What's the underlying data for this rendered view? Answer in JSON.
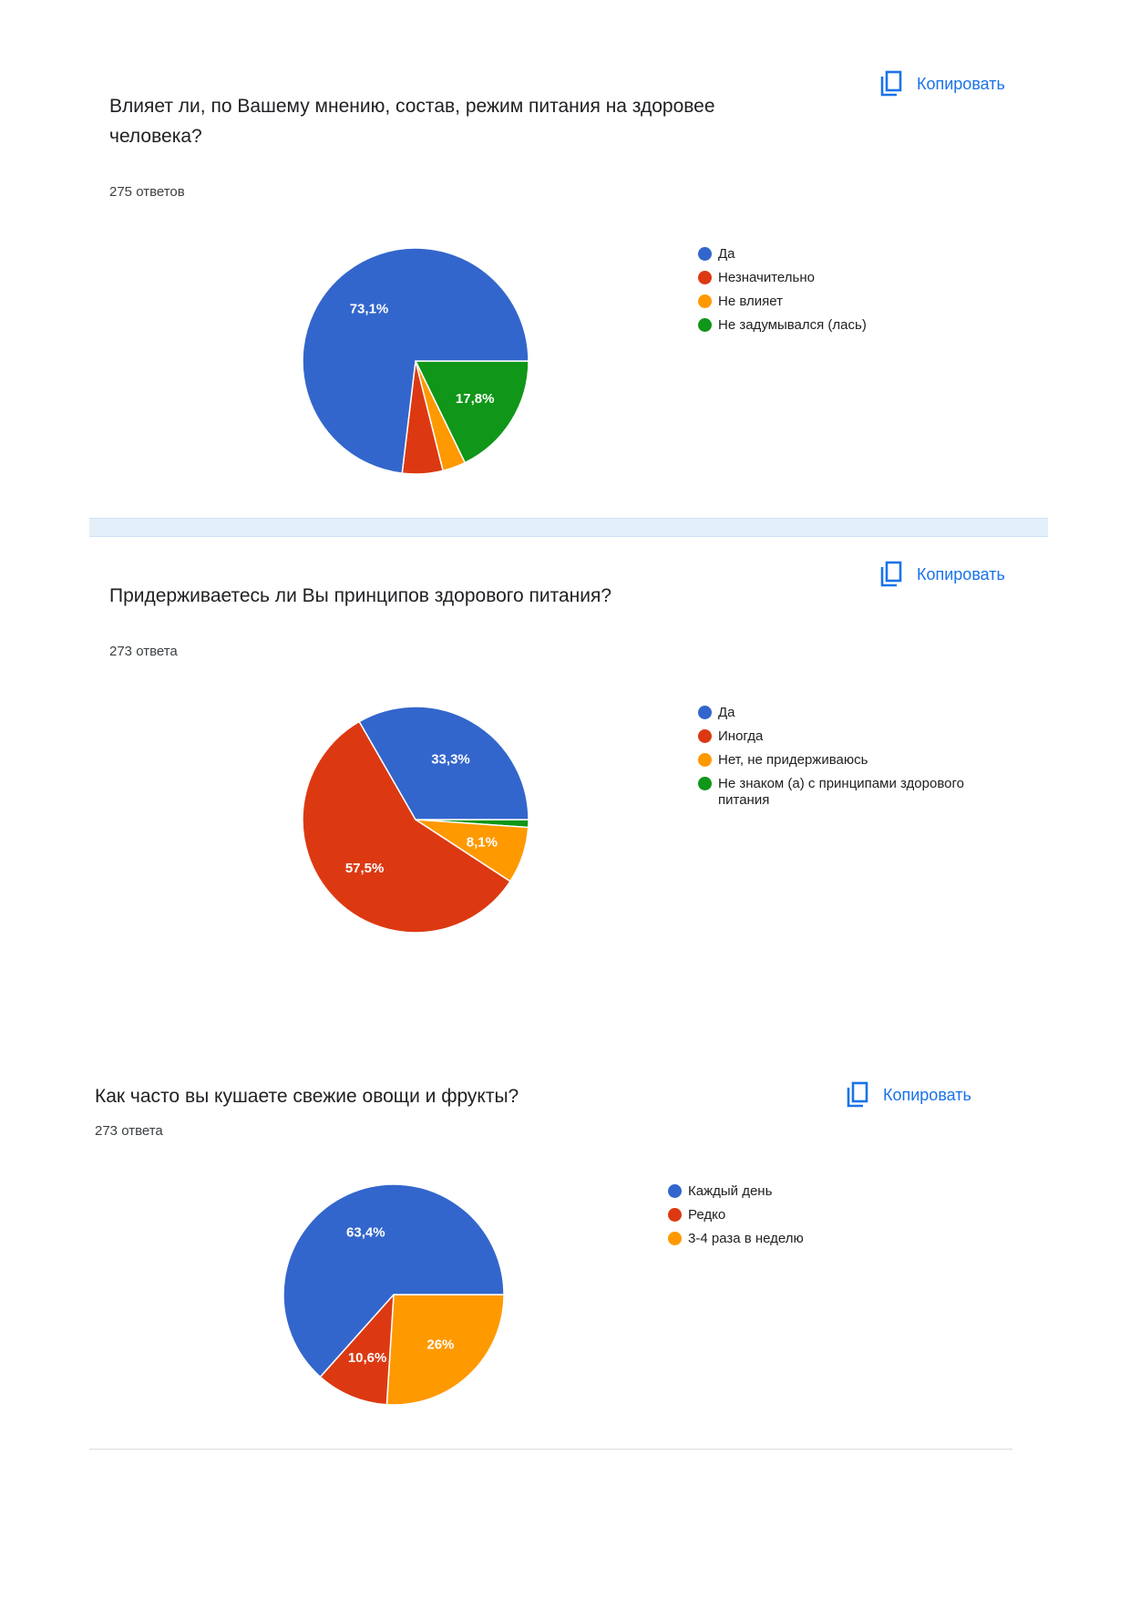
{
  "copy_label": "Копировать",
  "cards": [
    {
      "question": "Влияет ли, по Вашему мнению, состав, режим питания на здоровее человека?",
      "responses": "275 ответов"
    },
    {
      "question": "Придерживаетесь ли Вы принципов здорового питания?",
      "responses": "273 ответа"
    },
    {
      "question": "Как часто вы кушаете свежие овощи и фрукты?",
      "responses": "273 ответа"
    }
  ],
  "chart_data": [
    {
      "type": "pie",
      "categories": [
        "Да",
        "Незначительно",
        "Не влияет",
        "Не задумывался (лась)"
      ],
      "values": [
        73.1,
        5.8,
        3.3,
        17.8
      ],
      "labels": [
        "73,1%",
        "",
        "",
        "17,8%"
      ],
      "colors": [
        "#3366cc",
        "#dc3912",
        "#ff9900",
        "#109618"
      ],
      "legend": "right"
    },
    {
      "type": "pie",
      "categories": [
        "Да",
        "Иногда",
        "Нет, не придерживаюсь",
        "Не знаком (а) с принципами здорового питания"
      ],
      "values": [
        33.3,
        57.5,
        8.1,
        1.1
      ],
      "labels": [
        "33,3%",
        "57,5%",
        "8,1%",
        ""
      ],
      "colors": [
        "#3366cc",
        "#dc3912",
        "#ff9900",
        "#109618"
      ],
      "legend": "right"
    },
    {
      "type": "pie",
      "categories": [
        "Каждый день",
        "Редко",
        "3-4 раза в неделю"
      ],
      "values": [
        63.4,
        10.6,
        26
      ],
      "labels": [
        "63,4%",
        "10,6%",
        "26%"
      ],
      "colors": [
        "#3366cc",
        "#dc3912",
        "#ff9900"
      ],
      "legend": "right"
    }
  ]
}
